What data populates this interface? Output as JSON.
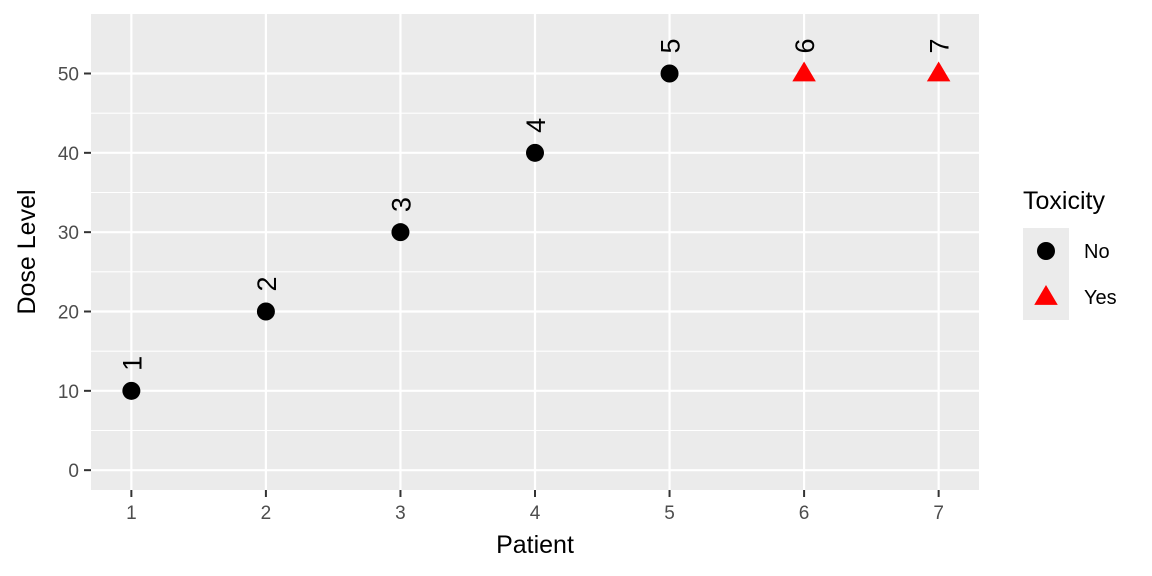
{
  "chart_data": {
    "type": "scatter",
    "title": "",
    "xlabel": "Patient",
    "ylabel": "Dose Level",
    "xlim": [
      0.7,
      7.3
    ],
    "ylim": [
      -2.5,
      57.5
    ],
    "x_ticks": [
      1,
      2,
      3,
      4,
      5,
      6,
      7
    ],
    "y_ticks": [
      0,
      10,
      20,
      30,
      40,
      50
    ],
    "grid": true,
    "legend": {
      "title": "Toxicity",
      "position": "right",
      "entries": [
        {
          "label": "No",
          "shape": "circle",
          "color": "#000000"
        },
        {
          "label": "Yes",
          "shape": "triangle",
          "color": "#ff0000"
        }
      ]
    },
    "points": [
      {
        "x": 1,
        "y": 10,
        "label": "1",
        "toxicity": "No"
      },
      {
        "x": 2,
        "y": 20,
        "label": "2",
        "toxicity": "No"
      },
      {
        "x": 3,
        "y": 30,
        "label": "3",
        "toxicity": "No"
      },
      {
        "x": 4,
        "y": 40,
        "label": "4",
        "toxicity": "No"
      },
      {
        "x": 5,
        "y": 50,
        "label": "5",
        "toxicity": "No"
      },
      {
        "x": 6,
        "y": 50,
        "label": "6",
        "toxicity": "Yes"
      },
      {
        "x": 7,
        "y": 50,
        "label": "7",
        "toxicity": "Yes"
      }
    ]
  }
}
